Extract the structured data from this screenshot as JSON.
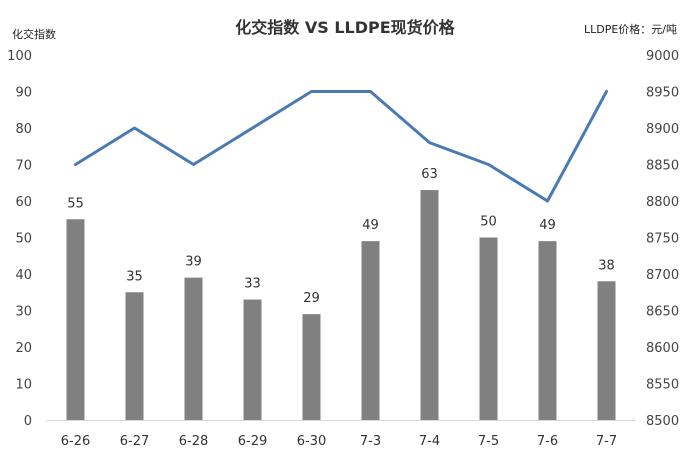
{
  "chart_data": {
    "type": "bar+line",
    "title": "化交指数 VS LLDPE现货价格",
    "left_axis_unit": "化交指数",
    "right_axis_unit": "LLDPE价格：元/吨",
    "categories": [
      "6-26",
      "6-27",
      "6-28",
      "6-29",
      "6-30",
      "7-3",
      "7-4",
      "7-5",
      "7-6",
      "7-7"
    ],
    "bars": {
      "axis": "left",
      "values": [
        55,
        35,
        39,
        33,
        29,
        49,
        63,
        50,
        49,
        38
      ],
      "color": "#808080"
    },
    "line": {
      "axis": "right",
      "values": [
        8850,
        8900,
        8850,
        8900,
        8950,
        8950,
        8880,
        8850,
        8800,
        8950
      ],
      "color": "#4a7ab5"
    },
    "ylim_left": [
      0,
      100
    ],
    "yticks_left": [
      0,
      10,
      20,
      30,
      40,
      50,
      60,
      70,
      80,
      90,
      100
    ],
    "ylim_right": [
      8500,
      9000
    ],
    "yticks_right": [
      8500,
      8550,
      8600,
      8650,
      8700,
      8750,
      8800,
      8850,
      8900,
      8950,
      9000
    ],
    "grid": false,
    "legend": "none"
  }
}
